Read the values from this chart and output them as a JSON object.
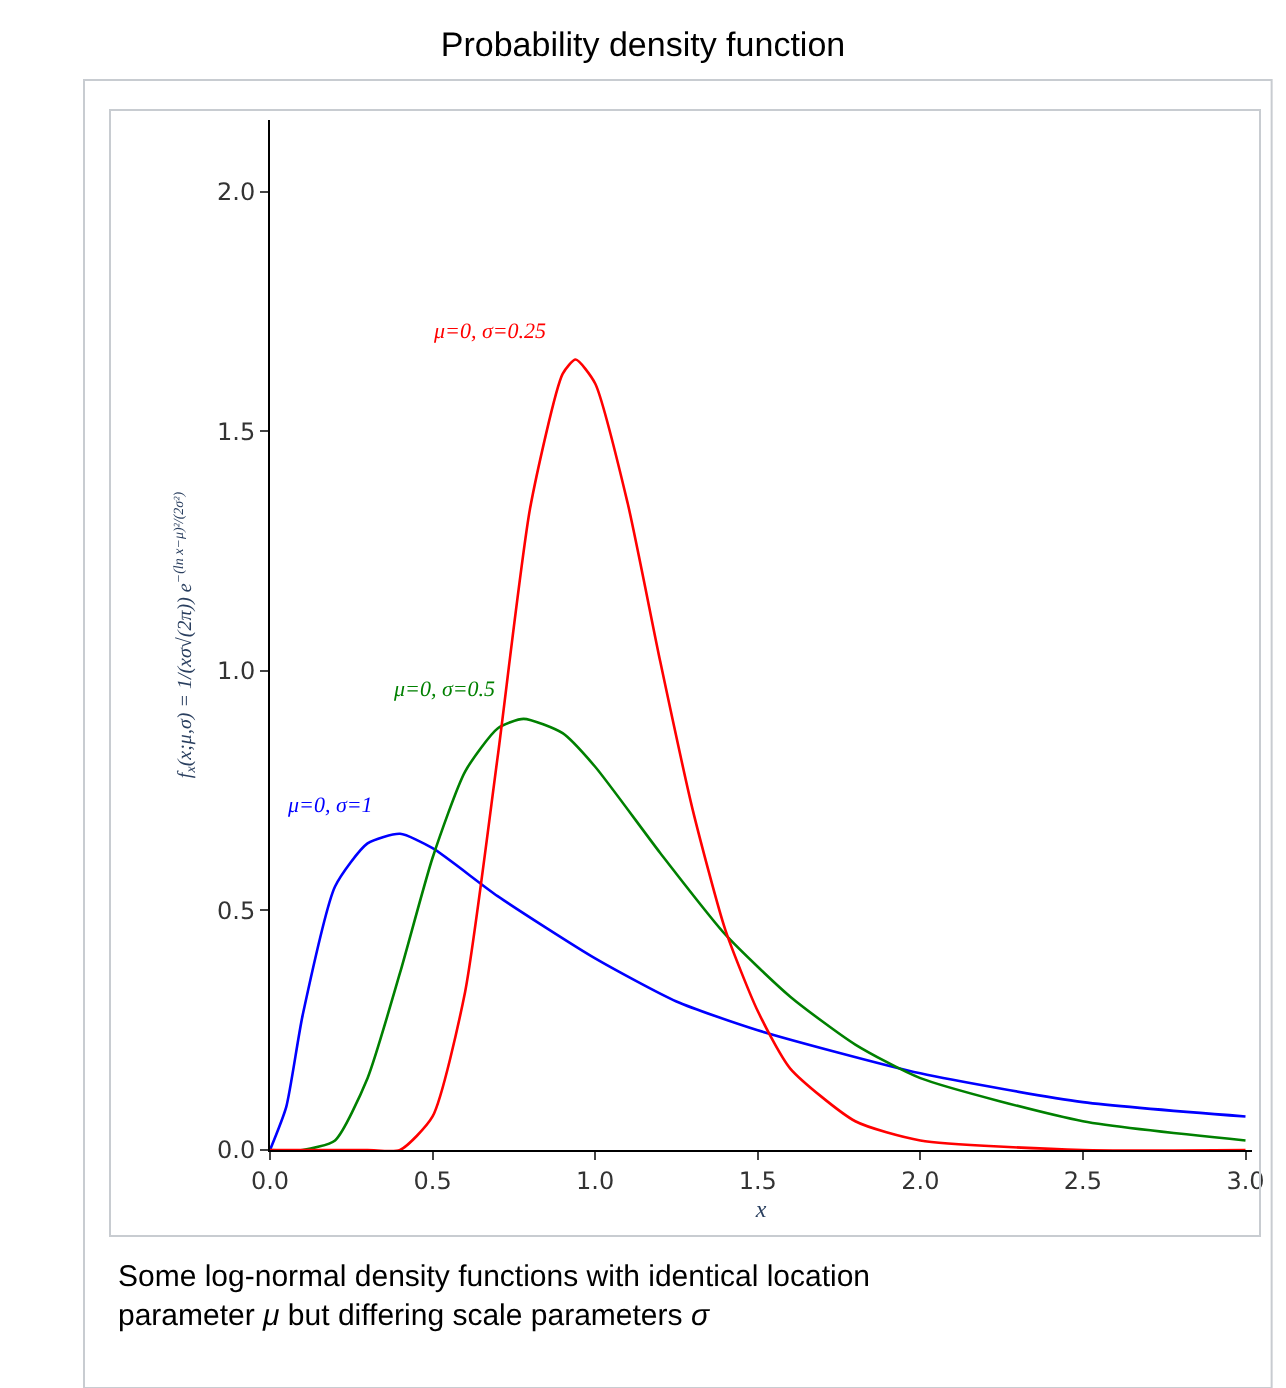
{
  "chart_data": {
    "type": "line",
    "title": "Probability density function",
    "xlabel": "x",
    "ylabel": "f$_{x}$(x;μ,σ) = 1/(xσ√(2π)) e$^{−(ln x−μ)²/(2σ²)}$",
    "series": [
      {
        "name": "μ=0, σ=1",
        "color": "#0000ff",
        "x": [
          0,
          0.05,
          0.1,
          0.2,
          0.3,
          0.4,
          0.5,
          0.7,
          1.0,
          1.25,
          1.5,
          2.0,
          2.5,
          3.0
        ],
        "values": [
          0,
          0.09,
          0.28,
          0.55,
          0.64,
          0.66,
          0.63,
          0.53,
          0.4,
          0.31,
          0.25,
          0.16,
          0.1,
          0.07
        ]
      },
      {
        "name": "μ=0, σ=0.5",
        "color": "#008000",
        "x": [
          0,
          0.1,
          0.2,
          0.3,
          0.4,
          0.5,
          0.6,
          0.7,
          0.78,
          0.9,
          1.0,
          1.2,
          1.4,
          1.6,
          1.8,
          2.0,
          2.5,
          3.0
        ],
        "values": [
          0,
          0.0,
          0.02,
          0.15,
          0.37,
          0.61,
          0.79,
          0.88,
          0.9,
          0.87,
          0.8,
          0.62,
          0.45,
          0.32,
          0.22,
          0.15,
          0.06,
          0.02
        ]
      },
      {
        "name": "μ=0, σ=0.25",
        "color": "#ff0000",
        "x": [
          0,
          0.3,
          0.4,
          0.5,
          0.6,
          0.7,
          0.8,
          0.9,
          0.94,
          1.0,
          1.1,
          1.2,
          1.3,
          1.4,
          1.5,
          1.6,
          1.8,
          2.0,
          2.5,
          3.0
        ],
        "values": [
          0,
          0.0,
          0.0,
          0.07,
          0.33,
          0.82,
          1.34,
          1.62,
          1.65,
          1.6,
          1.35,
          1.02,
          0.71,
          0.46,
          0.29,
          0.17,
          0.06,
          0.02,
          0.0,
          0.0
        ]
      }
    ],
    "annotations": [
      "Some log-normal density functions with identical location parameter μ but differing scale parameters σ"
    ],
    "xlim": [
      0,
      3.02
    ],
    "ylim": [
      0,
      2.15
    ],
    "xticks": [
      {
        "value": 0,
        "label": "0.0"
      },
      0.5,
      {
        "value": 1,
        "label": "1.0"
      },
      1.5,
      {
        "value": 2,
        "label": "2.0"
      },
      2.5,
      {
        "value": 3,
        "label": "3.0"
      }
    ],
    "yticks": [
      {
        "value": 0,
        "label": "0.0"
      },
      0.5,
      {
        "value": 1,
        "label": "1.0"
      },
      1.5,
      {
        "value": 2,
        "label": "2.0"
      }
    ],
    "legend": false,
    "marker": "none",
    "line_style": "solid"
  }
}
